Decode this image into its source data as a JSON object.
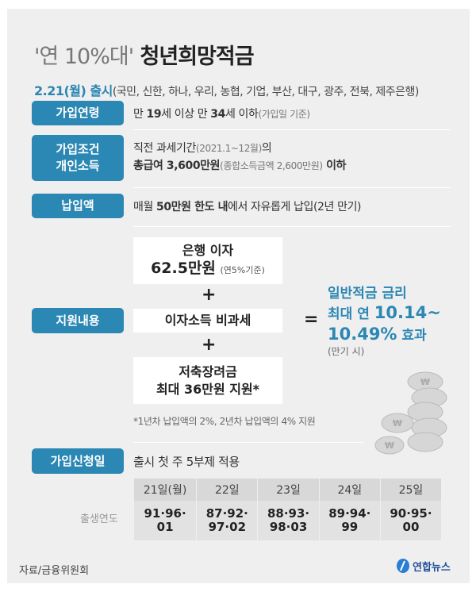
{
  "title": {
    "quote": "'연 10%대'",
    "main": "청년희망적금"
  },
  "subtitle": {
    "date": "2.21(월) 출시",
    "banks": "(국민, 신한, 하나, 우리, 농협, 기업, 부산, 대구, 광주, 전북, 제주은행)"
  },
  "rows": {
    "age": {
      "label": "가입연령",
      "t1": "만 ",
      "b1": "19",
      "t2": "세 이상 만 ",
      "b2": "34",
      "t3": "세 이하",
      "note": "(가입일 기준)"
    },
    "income": {
      "label1": "가입조건",
      "label2": "개인소득",
      "line1": "직전 과세기간",
      "line1_note": "(2021.1~12월)",
      "line1_end": "의",
      "b": "총급여 3,600만원",
      "note": "(종합소득금액 2,600만원)",
      "end": " 이하"
    },
    "payment": {
      "label": "납입액",
      "t1": "매월 ",
      "b": "50만원 한도 내",
      "t2": "에서 자유롭게 납입(2년 만기)"
    },
    "support": {
      "label": "지원내용",
      "box1_l1": "은행 이자",
      "box1_b": "62.5만원",
      "box1_note": "(연5%기준)",
      "plus": "+",
      "box2": "이자소득 비과세",
      "box3_l1": "저축장려금",
      "box3_l2": "최대 36만원 지원*",
      "equals": "=",
      "result_l1": "일반적금 금리",
      "result_l2": "최대 연 ",
      "result_b2": "10.14~",
      "result_l3": "10.49%",
      "result_l3b": " 효과",
      "result_note": "(만기 시)",
      "footnote": "*1년차 납입액의 2%, 2년차 납입액의 4% 지원"
    },
    "apply": {
      "label": "가입신청일",
      "text": "출시 첫 주 5부제 적용"
    }
  },
  "schedule": {
    "row_label": "출생연도",
    "days": [
      "21일(월)",
      "22일",
      "23일",
      "24일",
      "25일"
    ],
    "years": [
      [
        "91·96·",
        "01"
      ],
      [
        "87·92·",
        "97·02"
      ],
      [
        "88·93·",
        "98·03"
      ],
      [
        "89·94·",
        "99"
      ],
      [
        "90·95·",
        "00"
      ]
    ]
  },
  "footer": {
    "source": "자료/금융위원회",
    "logo": "연합뉴스"
  },
  "colors": {
    "accent": "#2b87b3",
    "background": "#efefef"
  }
}
